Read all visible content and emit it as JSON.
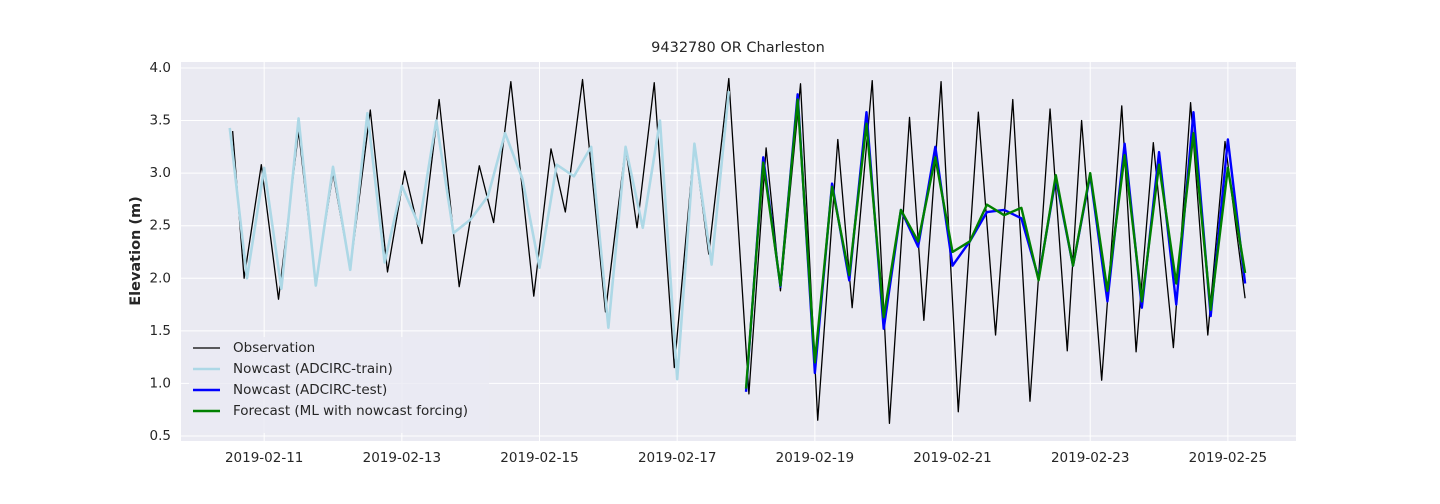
{
  "chart_data": {
    "type": "line",
    "title": "9432780 OR Charleston",
    "y_label": "Elevation (m)",
    "xlim": [
      "2019-02-09 19:00",
      "2019-02-25 23:45"
    ],
    "ylim": [
      0.452,
      4.057
    ],
    "xticks": [
      "2019-02-11",
      "2019-02-13",
      "2019-02-15",
      "2019-02-17",
      "2019-02-19",
      "2019-02-21",
      "2019-02-23",
      "2019-02-25"
    ],
    "yticks": [
      0.5,
      {
        "value": 1.0,
        "label": "1.0"
      },
      1.5,
      {
        "value": 2.0,
        "label": "2.0"
      },
      2.5,
      {
        "value": 3.0,
        "label": "3.0"
      },
      3.5,
      {
        "value": 4.0,
        "label": "4.0"
      }
    ],
    "grid": true,
    "legend_position": "lower left",
    "series": [
      {
        "name": "Observation",
        "color": "#000000",
        "width": 1.3,
        "x": [
          "2019-02-10 13:00",
          "2019-02-10 17:00",
          "2019-02-10 23:00",
          "2019-02-11 05:00",
          "2019-02-11 12:00",
          "2019-02-11 18:00",
          "2019-02-12 00:00",
          "2019-02-12 06:00",
          "2019-02-12 13:00",
          "2019-02-12 19:00",
          "2019-02-13 01:00",
          "2019-02-13 07:00",
          "2019-02-13 13:00",
          "2019-02-13 20:00",
          "2019-02-14 03:00",
          "2019-02-14 08:00",
          "2019-02-14 14:00",
          "2019-02-14 22:00",
          "2019-02-15 04:00",
          "2019-02-15 09:00",
          "2019-02-15 15:00",
          "2019-02-15 23:00",
          "2019-02-16 06:00",
          "2019-02-16 10:00",
          "2019-02-16 16:00",
          "2019-02-16 23:00",
          "2019-02-17 06:00",
          "2019-02-17 11:00",
          "2019-02-17 18:00",
          "2019-02-18 01:00",
          "2019-02-18 07:00",
          "2019-02-18 12:00",
          "2019-02-18 19:00",
          "2019-02-19 01:00",
          "2019-02-19 08:00",
          "2019-02-19 13:00",
          "2019-02-19 20:00",
          "2019-02-20 02:00",
          "2019-02-20 09:00",
          "2019-02-20 14:00",
          "2019-02-20 20:00",
          "2019-02-21 02:00",
          "2019-02-21 09:00",
          "2019-02-21 15:00",
          "2019-02-21 21:00",
          "2019-02-22 03:00",
          "2019-02-22 10:00",
          "2019-02-22 16:00",
          "2019-02-22 21:00",
          "2019-02-23 04:00",
          "2019-02-23 11:00",
          "2019-02-23 16:00",
          "2019-02-23 22:00",
          "2019-02-24 05:00",
          "2019-02-24 11:00",
          "2019-02-24 17:00",
          "2019-02-24 23:00",
          "2019-02-25 06:00"
        ],
        "values": [
          3.4,
          2.0,
          3.08,
          1.8,
          3.4,
          1.95,
          3.0,
          2.08,
          3.6,
          2.06,
          3.02,
          2.33,
          3.7,
          1.92,
          3.07,
          2.53,
          3.87,
          1.83,
          3.23,
          2.63,
          3.89,
          1.68,
          3.25,
          2.48,
          3.86,
          1.15,
          3.28,
          2.23,
          3.9,
          0.9,
          3.24,
          1.88,
          3.85,
          0.65,
          3.32,
          1.72,
          3.88,
          0.62,
          3.53,
          1.6,
          3.87,
          0.73,
          3.58,
          1.46,
          3.7,
          0.83,
          3.61,
          1.31,
          3.5,
          1.03,
          3.64,
          1.3,
          3.29,
          1.34,
          3.67,
          1.46,
          3.3,
          1.81
        ]
      },
      {
        "name": "Nowcast (ADCIRC-train)",
        "color": "#add8e6",
        "width": 2.6,
        "x": [
          "2019-02-10 12:00",
          "2019-02-10 18:00",
          "2019-02-11 00:00",
          "2019-02-11 06:00",
          "2019-02-11 12:00",
          "2019-02-11 18:00",
          "2019-02-12 00:00",
          "2019-02-12 06:00",
          "2019-02-12 12:00",
          "2019-02-12 18:00",
          "2019-02-13 00:00",
          "2019-02-13 06:00",
          "2019-02-13 12:00",
          "2019-02-13 18:00",
          "2019-02-14 00:00",
          "2019-02-14 06:00",
          "2019-02-14 12:00",
          "2019-02-14 18:00",
          "2019-02-15 00:00",
          "2019-02-15 06:00",
          "2019-02-15 12:00",
          "2019-02-15 18:00",
          "2019-02-16 00:00",
          "2019-02-16 06:00",
          "2019-02-16 12:00",
          "2019-02-16 18:00",
          "2019-02-17 00:00",
          "2019-02-17 06:00",
          "2019-02-17 12:00",
          "2019-02-17 18:00"
        ],
        "values": [
          3.43,
          2.0,
          3.05,
          1.9,
          3.52,
          1.93,
          3.06,
          2.08,
          3.57,
          2.15,
          2.88,
          2.5,
          3.5,
          2.43,
          2.56,
          2.78,
          3.38,
          2.95,
          2.1,
          3.08,
          2.97,
          3.25,
          1.53,
          3.25,
          2.48,
          3.5,
          1.04,
          3.28,
          2.13,
          3.78
        ]
      },
      {
        "name": "Nowcast (ADCIRC-test)",
        "color": "#0000ff",
        "width": 2.4,
        "x": [
          "2019-02-18 00:00",
          "2019-02-18 06:00",
          "2019-02-18 12:00",
          "2019-02-18 18:00",
          "2019-02-19 00:00",
          "2019-02-19 06:00",
          "2019-02-19 12:00",
          "2019-02-19 18:00",
          "2019-02-20 00:00",
          "2019-02-20 06:00",
          "2019-02-20 12:00",
          "2019-02-20 18:00",
          "2019-02-21 00:00",
          "2019-02-21 06:00",
          "2019-02-21 12:00",
          "2019-02-21 18:00",
          "2019-02-22 00:00",
          "2019-02-22 06:00",
          "2019-02-22 12:00",
          "2019-02-22 18:00",
          "2019-02-23 00:00",
          "2019-02-23 06:00",
          "2019-02-23 12:00",
          "2019-02-23 18:00",
          "2019-02-24 00:00",
          "2019-02-24 06:00",
          "2019-02-24 12:00",
          "2019-02-24 18:00",
          "2019-02-25 00:00",
          "2019-02-25 06:00"
        ],
        "values": [
          0.92,
          3.15,
          1.92,
          3.75,
          1.1,
          2.9,
          1.98,
          3.58,
          1.52,
          2.65,
          2.3,
          3.25,
          2.12,
          2.35,
          2.63,
          2.65,
          2.57,
          2.0,
          2.95,
          2.12,
          2.98,
          1.78,
          3.28,
          1.72,
          3.2,
          1.75,
          3.58,
          1.64,
          3.32,
          1.95
        ]
      },
      {
        "name": "Forecast (ML with nowcast forcing)",
        "color": "#008000",
        "width": 2.4,
        "x": [
          "2019-02-18 00:00",
          "2019-02-18 06:00",
          "2019-02-18 12:00",
          "2019-02-18 18:00",
          "2019-02-19 00:00",
          "2019-02-19 06:00",
          "2019-02-19 12:00",
          "2019-02-19 18:00",
          "2019-02-20 00:00",
          "2019-02-20 06:00",
          "2019-02-20 12:00",
          "2019-02-20 18:00",
          "2019-02-21 00:00",
          "2019-02-21 06:00",
          "2019-02-21 12:00",
          "2019-02-21 18:00",
          "2019-02-22 00:00",
          "2019-02-22 06:00",
          "2019-02-22 12:00",
          "2019-02-22 18:00",
          "2019-02-23 00:00",
          "2019-02-23 06:00",
          "2019-02-23 12:00",
          "2019-02-23 18:00",
          "2019-02-24 00:00",
          "2019-02-24 06:00",
          "2019-02-24 12:00",
          "2019-02-24 18:00",
          "2019-02-25 00:00",
          "2019-02-25 06:00"
        ],
        "values": [
          0.95,
          3.1,
          1.93,
          3.7,
          1.2,
          2.87,
          2.03,
          3.47,
          1.63,
          2.65,
          2.35,
          3.15,
          2.25,
          2.35,
          2.7,
          2.6,
          2.67,
          1.98,
          2.98,
          2.12,
          3.0,
          1.88,
          3.17,
          1.78,
          3.08,
          1.95,
          3.38,
          1.7,
          3.05,
          2.05
        ]
      }
    ]
  }
}
